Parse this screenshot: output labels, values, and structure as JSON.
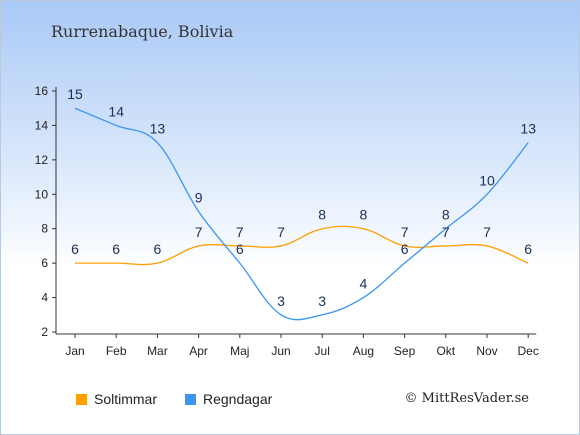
{
  "title": "Rurrenabaque, Bolivia",
  "credit": "© MittResVader.se",
  "chart_data": {
    "type": "line",
    "categories": [
      "Jan",
      "Feb",
      "Mar",
      "Apr",
      "Maj",
      "Jun",
      "Jul",
      "Aug",
      "Sep",
      "Okt",
      "Nov",
      "Dec"
    ],
    "ylim": [
      2,
      16
    ],
    "yticks": [
      2,
      4,
      6,
      8,
      10,
      12,
      14,
      16
    ],
    "grid": false,
    "legend_position": "bottom-left",
    "series": [
      {
        "name": "Soltimmar",
        "color": "#ff9e00",
        "values": [
          6,
          6,
          6,
          7,
          7,
          7,
          8,
          8,
          7,
          7,
          7,
          6
        ]
      },
      {
        "name": "Regndagar",
        "color": "#3a96ef",
        "values": [
          15,
          14,
          13,
          9,
          6,
          3,
          3,
          4,
          6,
          8,
          10,
          13
        ]
      }
    ]
  }
}
